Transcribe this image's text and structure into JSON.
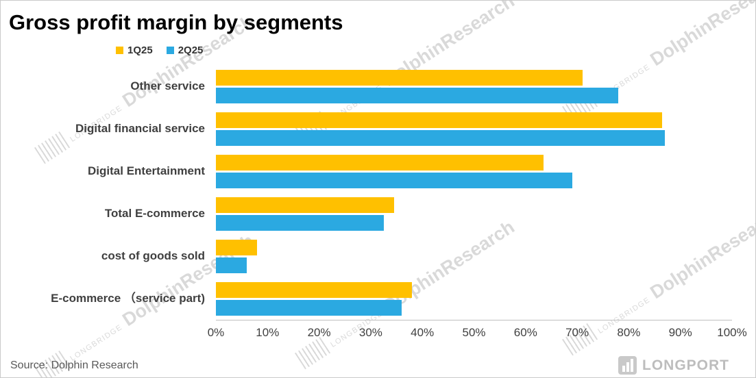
{
  "title": "Gross profit margin by segments",
  "source": "Source: Dolphin Research",
  "colors": {
    "q1": "#FFC000",
    "q2": "#2BA9E1"
  },
  "watermark": {
    "longbridge": "LONGBRIDGE",
    "dolphin": "DolphinResearch",
    "longport": "LONGPORT"
  },
  "chart_data": {
    "type": "bar",
    "orientation": "horizontal",
    "title": "Gross profit margin by segments",
    "categories": [
      "Other service",
      "Digital financial service",
      "Digital Entertainment",
      "Total E-commerce",
      "cost of goods sold",
      "E-commerce （service part)"
    ],
    "series": [
      {
        "name": "1Q25",
        "color": "#FFC000",
        "values": [
          71,
          86.5,
          63.5,
          34.5,
          8,
          38
        ]
      },
      {
        "name": "2Q25",
        "color": "#2BA9E1",
        "values": [
          78,
          87,
          69,
          32.5,
          6,
          36
        ]
      }
    ],
    "xlim": [
      0,
      100
    ],
    "x_ticks": [
      "0%",
      "10%",
      "20%",
      "30%",
      "40%",
      "50%",
      "60%",
      "70%",
      "80%",
      "90%",
      "100%"
    ],
    "grid": false,
    "legend_position": "top-left"
  }
}
